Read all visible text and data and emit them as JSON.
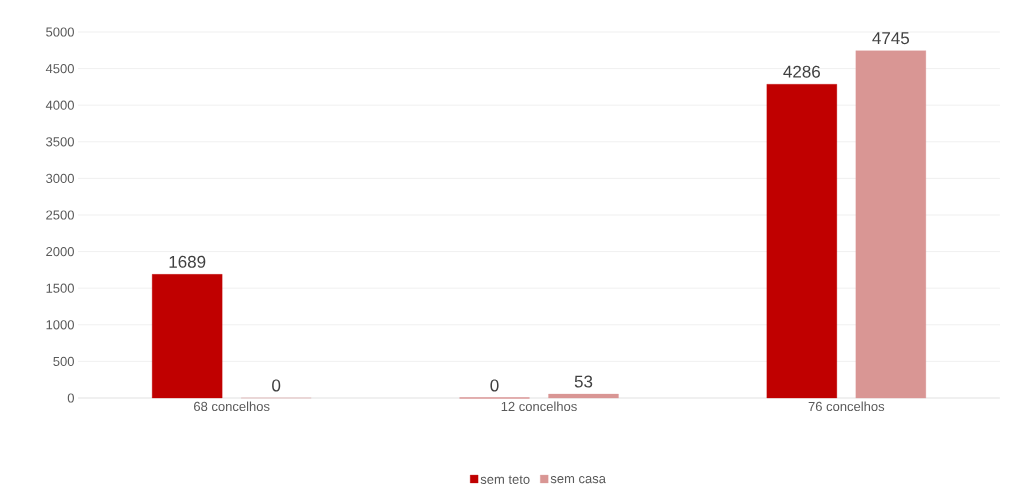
{
  "chart_data": {
    "type": "bar",
    "categories": [
      "68 concelhos",
      "12 concelhos",
      "76 concelhos"
    ],
    "series": [
      {
        "name": "sem teto",
        "color": "#c00000",
        "values": [
          1689,
          0,
          4286
        ],
        "value_labels": [
          "1689",
          "0",
          "4286"
        ]
      },
      {
        "name": "sem casa",
        "color": "#d99694",
        "values": [
          0,
          53,
          4745
        ],
        "value_labels": [
          "0",
          "53",
          "4745"
        ]
      }
    ],
    "ylim": [
      0,
      5000
    ],
    "yticks": [
      0,
      500,
      1000,
      1500,
      2000,
      2500,
      3000,
      3500,
      4000,
      4500,
      5000
    ],
    "grid": "y",
    "legend": "bottom"
  }
}
